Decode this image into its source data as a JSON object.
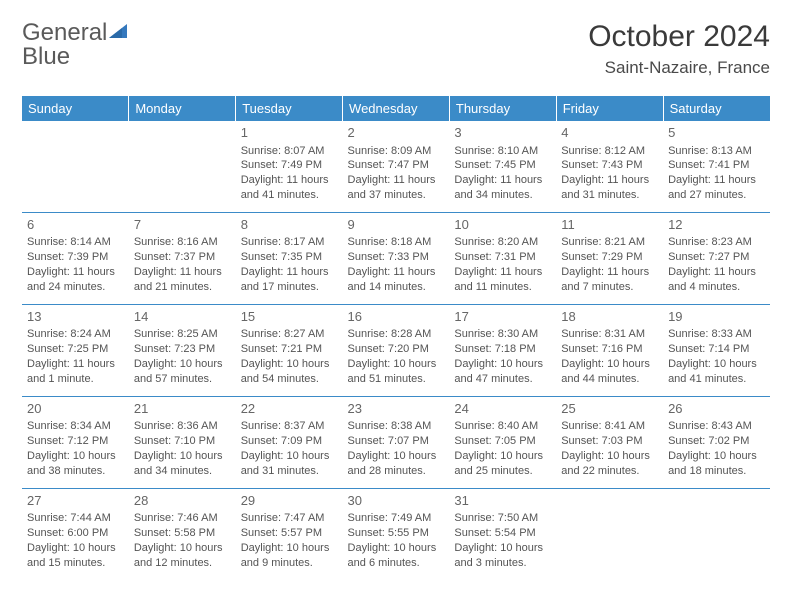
{
  "logo": {
    "word1": "General",
    "word2": "Blue"
  },
  "title": "October 2024",
  "location": "Saint-Nazaire, France",
  "dayHeaders": [
    "Sunday",
    "Monday",
    "Tuesday",
    "Wednesday",
    "Thursday",
    "Friday",
    "Saturday"
  ],
  "colors": {
    "headerBg": "#3b8bc8",
    "headerText": "#ffffff",
    "rowBorder": "#3b8bc8",
    "bodyText": "#545454",
    "logoBlue": "#3478bd"
  },
  "weeks": [
    [
      null,
      null,
      {
        "n": "1",
        "sr": "Sunrise: 8:07 AM",
        "ss": "Sunset: 7:49 PM",
        "d1": "Daylight: 11 hours",
        "d2": "and 41 minutes."
      },
      {
        "n": "2",
        "sr": "Sunrise: 8:09 AM",
        "ss": "Sunset: 7:47 PM",
        "d1": "Daylight: 11 hours",
        "d2": "and 37 minutes."
      },
      {
        "n": "3",
        "sr": "Sunrise: 8:10 AM",
        "ss": "Sunset: 7:45 PM",
        "d1": "Daylight: 11 hours",
        "d2": "and 34 minutes."
      },
      {
        "n": "4",
        "sr": "Sunrise: 8:12 AM",
        "ss": "Sunset: 7:43 PM",
        "d1": "Daylight: 11 hours",
        "d2": "and 31 minutes."
      },
      {
        "n": "5",
        "sr": "Sunrise: 8:13 AM",
        "ss": "Sunset: 7:41 PM",
        "d1": "Daylight: 11 hours",
        "d2": "and 27 minutes."
      }
    ],
    [
      {
        "n": "6",
        "sr": "Sunrise: 8:14 AM",
        "ss": "Sunset: 7:39 PM",
        "d1": "Daylight: 11 hours",
        "d2": "and 24 minutes."
      },
      {
        "n": "7",
        "sr": "Sunrise: 8:16 AM",
        "ss": "Sunset: 7:37 PM",
        "d1": "Daylight: 11 hours",
        "d2": "and 21 minutes."
      },
      {
        "n": "8",
        "sr": "Sunrise: 8:17 AM",
        "ss": "Sunset: 7:35 PM",
        "d1": "Daylight: 11 hours",
        "d2": "and 17 minutes."
      },
      {
        "n": "9",
        "sr": "Sunrise: 8:18 AM",
        "ss": "Sunset: 7:33 PM",
        "d1": "Daylight: 11 hours",
        "d2": "and 14 minutes."
      },
      {
        "n": "10",
        "sr": "Sunrise: 8:20 AM",
        "ss": "Sunset: 7:31 PM",
        "d1": "Daylight: 11 hours",
        "d2": "and 11 minutes."
      },
      {
        "n": "11",
        "sr": "Sunrise: 8:21 AM",
        "ss": "Sunset: 7:29 PM",
        "d1": "Daylight: 11 hours",
        "d2": "and 7 minutes."
      },
      {
        "n": "12",
        "sr": "Sunrise: 8:23 AM",
        "ss": "Sunset: 7:27 PM",
        "d1": "Daylight: 11 hours",
        "d2": "and 4 minutes."
      }
    ],
    [
      {
        "n": "13",
        "sr": "Sunrise: 8:24 AM",
        "ss": "Sunset: 7:25 PM",
        "d1": "Daylight: 11 hours",
        "d2": "and 1 minute."
      },
      {
        "n": "14",
        "sr": "Sunrise: 8:25 AM",
        "ss": "Sunset: 7:23 PM",
        "d1": "Daylight: 10 hours",
        "d2": "and 57 minutes."
      },
      {
        "n": "15",
        "sr": "Sunrise: 8:27 AM",
        "ss": "Sunset: 7:21 PM",
        "d1": "Daylight: 10 hours",
        "d2": "and 54 minutes."
      },
      {
        "n": "16",
        "sr": "Sunrise: 8:28 AM",
        "ss": "Sunset: 7:20 PM",
        "d1": "Daylight: 10 hours",
        "d2": "and 51 minutes."
      },
      {
        "n": "17",
        "sr": "Sunrise: 8:30 AM",
        "ss": "Sunset: 7:18 PM",
        "d1": "Daylight: 10 hours",
        "d2": "and 47 minutes."
      },
      {
        "n": "18",
        "sr": "Sunrise: 8:31 AM",
        "ss": "Sunset: 7:16 PM",
        "d1": "Daylight: 10 hours",
        "d2": "and 44 minutes."
      },
      {
        "n": "19",
        "sr": "Sunrise: 8:33 AM",
        "ss": "Sunset: 7:14 PM",
        "d1": "Daylight: 10 hours",
        "d2": "and 41 minutes."
      }
    ],
    [
      {
        "n": "20",
        "sr": "Sunrise: 8:34 AM",
        "ss": "Sunset: 7:12 PM",
        "d1": "Daylight: 10 hours",
        "d2": "and 38 minutes."
      },
      {
        "n": "21",
        "sr": "Sunrise: 8:36 AM",
        "ss": "Sunset: 7:10 PM",
        "d1": "Daylight: 10 hours",
        "d2": "and 34 minutes."
      },
      {
        "n": "22",
        "sr": "Sunrise: 8:37 AM",
        "ss": "Sunset: 7:09 PM",
        "d1": "Daylight: 10 hours",
        "d2": "and 31 minutes."
      },
      {
        "n": "23",
        "sr": "Sunrise: 8:38 AM",
        "ss": "Sunset: 7:07 PM",
        "d1": "Daylight: 10 hours",
        "d2": "and 28 minutes."
      },
      {
        "n": "24",
        "sr": "Sunrise: 8:40 AM",
        "ss": "Sunset: 7:05 PM",
        "d1": "Daylight: 10 hours",
        "d2": "and 25 minutes."
      },
      {
        "n": "25",
        "sr": "Sunrise: 8:41 AM",
        "ss": "Sunset: 7:03 PM",
        "d1": "Daylight: 10 hours",
        "d2": "and 22 minutes."
      },
      {
        "n": "26",
        "sr": "Sunrise: 8:43 AM",
        "ss": "Sunset: 7:02 PM",
        "d1": "Daylight: 10 hours",
        "d2": "and 18 minutes."
      }
    ],
    [
      {
        "n": "27",
        "sr": "Sunrise: 7:44 AM",
        "ss": "Sunset: 6:00 PM",
        "d1": "Daylight: 10 hours",
        "d2": "and 15 minutes."
      },
      {
        "n": "28",
        "sr": "Sunrise: 7:46 AM",
        "ss": "Sunset: 5:58 PM",
        "d1": "Daylight: 10 hours",
        "d2": "and 12 minutes."
      },
      {
        "n": "29",
        "sr": "Sunrise: 7:47 AM",
        "ss": "Sunset: 5:57 PM",
        "d1": "Daylight: 10 hours",
        "d2": "and 9 minutes."
      },
      {
        "n": "30",
        "sr": "Sunrise: 7:49 AM",
        "ss": "Sunset: 5:55 PM",
        "d1": "Daylight: 10 hours",
        "d2": "and 6 minutes."
      },
      {
        "n": "31",
        "sr": "Sunrise: 7:50 AM",
        "ss": "Sunset: 5:54 PM",
        "d1": "Daylight: 10 hours",
        "d2": "and 3 minutes."
      },
      null,
      null
    ]
  ]
}
